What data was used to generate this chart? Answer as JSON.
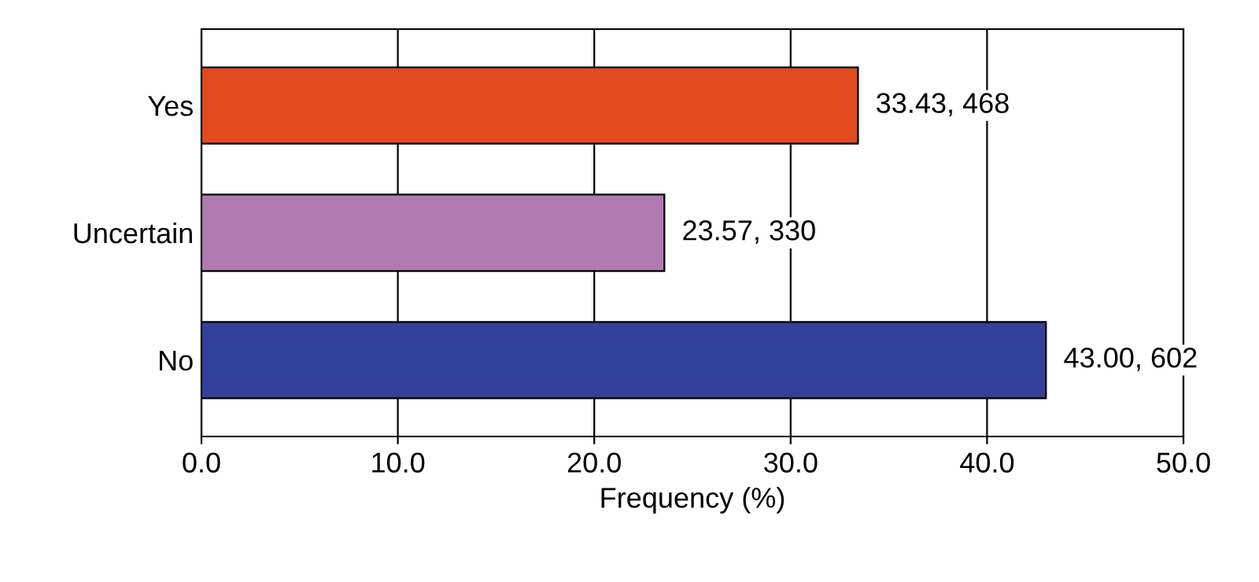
{
  "chart_data": {
    "type": "bar",
    "orientation": "horizontal",
    "xlabel": "Frequency (%)",
    "categories": [
      "Yes",
      "Uncertain",
      "No"
    ],
    "values": [
      33.43,
      23.57,
      43.0
    ],
    "colors": [
      "#e04a1e",
      "#b07ab0",
      "#33409a"
    ],
    "value_labels": [
      "33.43, 468",
      "23.57, 330",
      "43.00, 602"
    ],
    "xlim": [
      0,
      50
    ],
    "xticks": [
      {
        "value": 0,
        "label": "0.0"
      },
      {
        "value": 10,
        "label": "10.0"
      },
      {
        "value": 20,
        "label": "20.0"
      },
      {
        "value": 30,
        "label": "30.0"
      },
      {
        "value": 40,
        "label": "40.0"
      },
      {
        "value": 50,
        "label": "50.0"
      }
    ],
    "grid": "x"
  }
}
